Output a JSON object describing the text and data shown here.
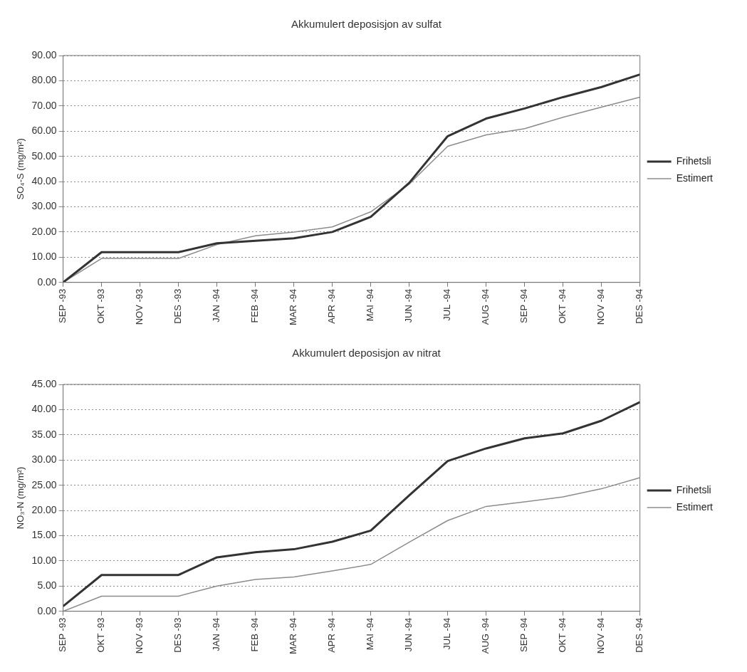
{
  "chart_data": [
    {
      "type": "line",
      "title": "Akkumulert deposisjon av sulfat",
      "ylabel": "SO₄-S (mg/m²)",
      "categories": [
        "SEP -93",
        "OKT -93",
        "NOV -93",
        "DES -93",
        "JAN -94",
        "FEB -94",
        "MAR -94",
        "APR -94",
        "MAI -94",
        "JUN -94",
        "JUL -94",
        "AUG -94",
        "SEP -94",
        "OKT -94",
        "NOV -94",
        "DES -94"
      ],
      "series": [
        {
          "name": "Frihetsli",
          "color": "#333333",
          "values": [
            0,
            12,
            12,
            12,
            15.5,
            16.5,
            17.5,
            20,
            26,
            39.5,
            58,
            65,
            69,
            73.5,
            77.5,
            82.5
          ]
        },
        {
          "name": "Estimert",
          "color": "#8c8c8c",
          "values": [
            0,
            9.5,
            9.5,
            9.5,
            15,
            18.5,
            20,
            22,
            28,
            39,
            54,
            58.5,
            61,
            65.5,
            69.5,
            73.5
          ]
        }
      ],
      "ylim": [
        0,
        90
      ],
      "yticks": [
        {
          "value": 0,
          "label": "0.00"
        },
        {
          "value": 10,
          "label": "10.00"
        },
        {
          "value": 20,
          "label": "20.00"
        },
        {
          "value": 30,
          "label": "30.00"
        },
        {
          "value": 40,
          "label": "40.00"
        },
        {
          "value": 50,
          "label": "50.00"
        },
        {
          "value": 60,
          "label": "60.00"
        },
        {
          "value": 70,
          "label": "70.00"
        },
        {
          "value": 80,
          "label": "80.00"
        },
        {
          "value": 90,
          "label": "90.00"
        }
      ],
      "grid": "y",
      "legend": "right",
      "marker": "none",
      "line_style": "solid"
    },
    {
      "type": "line",
      "title": "Akkumulert deposisjon av nitrat",
      "ylabel": "NO₃-N (mg/m²)",
      "categories": [
        "SEP -93",
        "OKT -93",
        "NOV -93",
        "DES -93",
        "JAN -94",
        "FEB -94",
        "MAR -94",
        "APR -94",
        "MAI -94",
        "JUN -94",
        "JUL -94",
        "AUG -94",
        "SEP -94",
        "OKT -94",
        "NOV -94",
        "DES -94"
      ],
      "series": [
        {
          "name": "Frihetsli",
          "color": "#333333",
          "values": [
            1,
            7.2,
            7.2,
            7.2,
            10.7,
            11.7,
            12.3,
            13.8,
            16,
            23,
            29.8,
            32.3,
            34.3,
            35.3,
            37.8,
            41.5
          ]
        },
        {
          "name": "Estimert",
          "color": "#8c8c8c",
          "values": [
            0,
            3,
            3,
            3,
            5,
            6.3,
            6.8,
            8,
            9.3,
            13.7,
            18,
            20.8,
            21.7,
            22.7,
            24.3,
            26.5
          ]
        }
      ],
      "ylim": [
        0,
        45
      ],
      "yticks": [
        {
          "value": 0,
          "label": "0.00"
        },
        {
          "value": 5,
          "label": "5.00"
        },
        {
          "value": 10,
          "label": "10.00"
        },
        {
          "value": 15,
          "label": "15.00"
        },
        {
          "value": 20,
          "label": "20.00"
        },
        {
          "value": 25,
          "label": "25.00"
        },
        {
          "value": 30,
          "label": "30.00"
        },
        {
          "value": 35,
          "label": "35.00"
        },
        {
          "value": 40,
          "label": "40.00"
        },
        {
          "value": 45,
          "label": "45.00"
        }
      ],
      "grid": "y",
      "legend": "right",
      "marker": "none",
      "line_style": "solid"
    }
  ]
}
